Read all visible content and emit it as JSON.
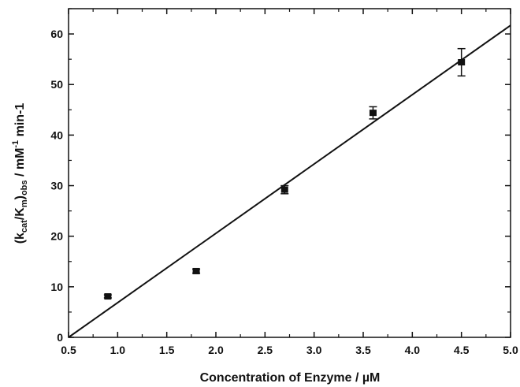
{
  "chart_data": {
    "type": "scatter",
    "xlabel": "Concentration of Enzyme / µM",
    "ylabel": {
      "prefix": "(k",
      "sub1": "cat",
      "mid1": "/K",
      "sub2": "m",
      "mid2": ")",
      "sub3": "obs",
      "mid3": " / mM",
      "sup": "-1",
      "suffix": " min-1"
    },
    "xlim": [
      0.5,
      5.0
    ],
    "ylim": [
      0,
      65
    ],
    "xticks": [
      "0.5",
      "1.0",
      "1.5",
      "2.0",
      "2.5",
      "3.0",
      "3.5",
      "4.0",
      "4.5",
      "5.0"
    ],
    "yticks": [
      "0",
      "10",
      "20",
      "30",
      "40",
      "50",
      "60"
    ],
    "grid": false,
    "series": [
      {
        "points": [
          {
            "x": 0.9,
            "y": 8.1,
            "err": 0.3
          },
          {
            "x": 1.8,
            "y": 13.1,
            "err": 0.4
          },
          {
            "x": 2.7,
            "y": 29.2,
            "err": 0.8
          },
          {
            "x": 3.6,
            "y": 44.4,
            "err": 1.2
          },
          {
            "x": 4.5,
            "y": 54.4,
            "err": 2.7
          }
        ]
      }
    ],
    "fit_line": {
      "x": [
        0.5,
        5.0
      ],
      "y": [
        0.0,
        61.7
      ]
    }
  }
}
